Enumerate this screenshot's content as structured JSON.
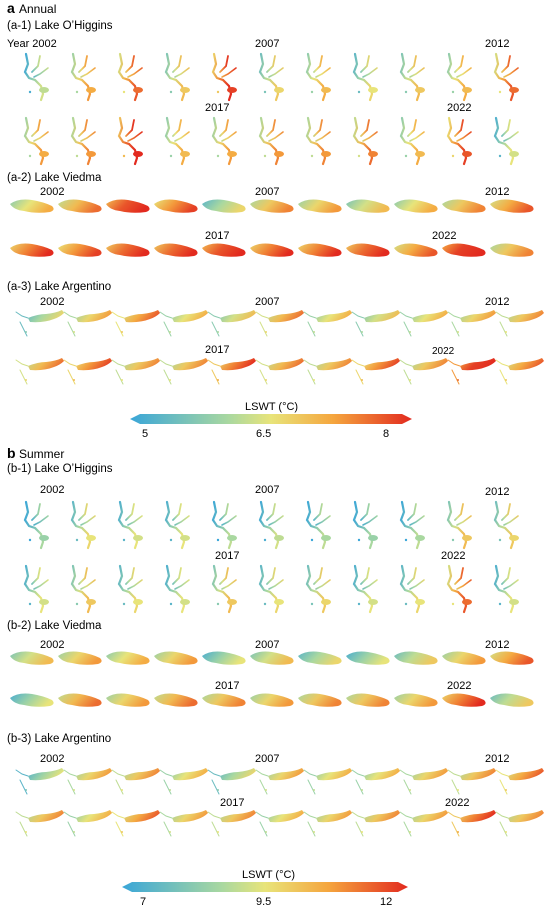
{
  "panel_a": {
    "letter": "a",
    "title": "Annual",
    "lakes": [
      {
        "label": "(a-1) Lake O’Higgins",
        "year_prefix": "Year ",
        "years": [
          "2002",
          "2007",
          "2012",
          "2017",
          "2022"
        ]
      },
      {
        "label": "(a-2) Lake Viedma",
        "years": [
          "2002",
          "2007",
          "2012",
          "2017",
          "2022"
        ]
      },
      {
        "label": "(a-3) Lake Argentino",
        "years": [
          "2002",
          "2007",
          "2012",
          "2017",
          "2022"
        ]
      }
    ],
    "colorbar": {
      "label": "LSWT  (°C)",
      "ticks": [
        "5",
        "6.5",
        "8"
      ]
    }
  },
  "panel_b": {
    "letter": "b",
    "title": "Summer",
    "lakes": [
      {
        "label": "(b-1) Lake O’Higgins",
        "years": [
          "2002",
          "2007",
          "2012",
          "2017",
          "2022"
        ]
      },
      {
        "label": "(b-2) Lake Viedma",
        "years": [
          "2002",
          "2007",
          "2012",
          "2017",
          "2022"
        ]
      },
      {
        "label": "(b-3) Lake Argentino",
        "years": [
          "2002",
          "2007",
          "2012",
          "2017",
          "2022"
        ]
      }
    ],
    "colorbar": {
      "label": "LSWT  (°C)",
      "ticks": [
        "7",
        "9.5",
        "12"
      ]
    }
  },
  "colors": {
    "cold": "#3aa6d8",
    "mid": "#d8e06a",
    "warm": "#f09a3a",
    "hot": "#e22a1f"
  },
  "chart_data": {
    "type": "heatmap",
    "rows": [
      {
        "lake": "(a-1) Lake O’Higgins",
        "levels": [
          0.25,
          0.55,
          0.7,
          0.45,
          0.8,
          0.4,
          0.5,
          0.35,
          0.45,
          0.5,
          0.7,
          0.55,
          0.6,
          0.85,
          0.5,
          0.55,
          0.6,
          0.6,
          0.65,
          0.5,
          0.75,
          0.3
        ]
      },
      {
        "lake": "(a-2) Lake Viedma",
        "levels": [
          0.5,
          0.65,
          0.9,
          0.75,
          0.35,
          0.6,
          0.55,
          0.45,
          0.5,
          0.6,
          0.7,
          0.8,
          0.75,
          0.85,
          0.85,
          0.9,
          0.8,
          0.8,
          0.85,
          0.7,
          0.95,
          0.6
        ]
      },
      {
        "lake": "(a-3) Lake Argentino",
        "levels": [
          0.35,
          0.55,
          0.7,
          0.5,
          0.45,
          0.65,
          0.5,
          0.45,
          0.5,
          0.55,
          0.6,
          0.65,
          0.75,
          0.6,
          0.6,
          0.8,
          0.65,
          0.6,
          0.75,
          0.6,
          0.95,
          0.7
        ]
      },
      {
        "lake": "(b-1) Lake O’Higgins",
        "levels": [
          0.15,
          0.35,
          0.3,
          0.3,
          0.2,
          0.25,
          0.2,
          0.15,
          0.2,
          0.45,
          0.4,
          0.3,
          0.45,
          0.35,
          0.3,
          0.45,
          0.35,
          0.4,
          0.3,
          0.35,
          0.7,
          0.3
        ]
      },
      {
        "lake": "(b-2) Lake Viedma",
        "levels": [
          0.45,
          0.55,
          0.5,
          0.55,
          0.3,
          0.45,
          0.35,
          0.3,
          0.4,
          0.55,
          0.7,
          0.3,
          0.65,
          0.55,
          0.65,
          0.6,
          0.55,
          0.6,
          0.6,
          0.55,
          0.8,
          0.4
        ]
      },
      {
        "lake": "(b-3) Lake Argentino",
        "levels": [
          0.3,
          0.55,
          0.6,
          0.5,
          0.35,
          0.55,
          0.5,
          0.5,
          0.55,
          0.6,
          0.7,
          0.6,
          0.5,
          0.7,
          0.55,
          0.6,
          0.5,
          0.55,
          0.6,
          0.55,
          0.8,
          0.6
        ]
      }
    ]
  }
}
